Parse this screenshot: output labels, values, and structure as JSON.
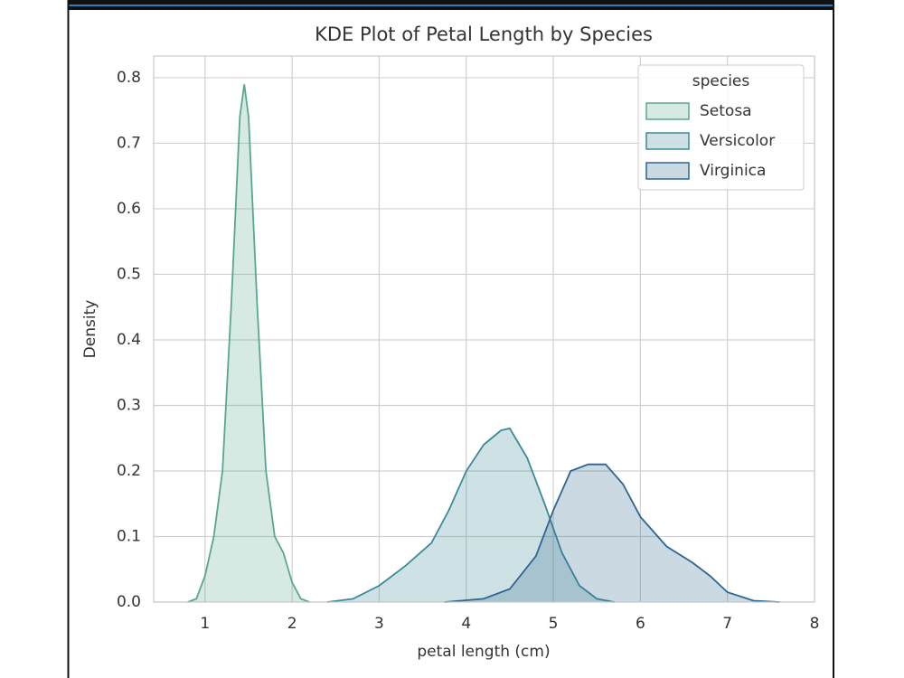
{
  "chart_data": {
    "type": "kde",
    "title": "KDE Plot of Petal Length by Species",
    "xlabel": "petal length (cm)",
    "ylabel": "Density",
    "xlim": [
      0.41,
      8.0
    ],
    "xticks": [
      1,
      2,
      3,
      4,
      5,
      6,
      7,
      8
    ],
    "ylim": [
      0,
      0.833
    ],
    "yticks": [
      {
        "value": 0,
        "label": "0.0"
      },
      0.1,
      0.2,
      0.3,
      0.4,
      0.5,
      0.6,
      0.7,
      0.8
    ],
    "grid": true,
    "legend_title": "species",
    "legend_position": "upper right",
    "series": [
      {
        "name": "Setosa",
        "color": "#5aa88a",
        "x": [
          0.8,
          0.9,
          1.0,
          1.1,
          1.2,
          1.3,
          1.4,
          1.45,
          1.5,
          1.6,
          1.7,
          1.8,
          1.9,
          2.0,
          2.1,
          2.2
        ],
        "values": [
          0.0,
          0.005,
          0.04,
          0.1,
          0.2,
          0.45,
          0.74,
          0.79,
          0.74,
          0.45,
          0.2,
          0.1,
          0.075,
          0.03,
          0.005,
          0.0
        ]
      },
      {
        "name": "Versicolor",
        "color": "#3b8a98",
        "x": [
          2.4,
          2.7,
          3.0,
          3.3,
          3.6,
          3.8,
          4.0,
          4.2,
          4.4,
          4.5,
          4.7,
          4.9,
          5.1,
          5.3,
          5.5,
          5.7
        ],
        "values": [
          0.0,
          0.005,
          0.025,
          0.055,
          0.09,
          0.14,
          0.2,
          0.24,
          0.262,
          0.265,
          0.22,
          0.15,
          0.075,
          0.025,
          0.005,
          0.0
        ]
      },
      {
        "name": "Virginica",
        "color": "#2e6691",
        "x": [
          3.75,
          4.2,
          4.5,
          4.8,
          5.0,
          5.2,
          5.4,
          5.6,
          5.8,
          6.0,
          6.3,
          6.6,
          6.8,
          7.0,
          7.3,
          7.6
        ],
        "values": [
          0.0,
          0.005,
          0.02,
          0.07,
          0.14,
          0.2,
          0.21,
          0.21,
          0.18,
          0.13,
          0.085,
          0.06,
          0.04,
          0.015,
          0.002,
          0.0
        ]
      }
    ]
  }
}
